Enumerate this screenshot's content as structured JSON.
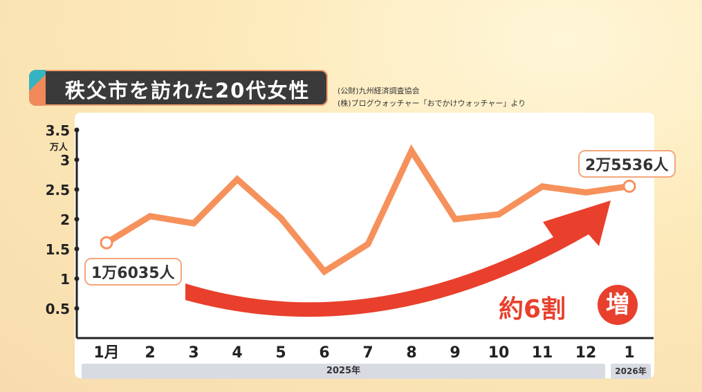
{
  "title": "秩父市を訪れた20代女性",
  "source_lines": [
    "(公財)九州経済調査協会",
    "(株)ブログウォッチャー「おでかけウォッチャー」より"
  ],
  "colors": {
    "line": "#f6915c",
    "arrow": "#e8402c",
    "badge": "#e8402c"
  },
  "chart_data": {
    "type": "line",
    "y_unit_label": "万人",
    "ylim": [
      0,
      3.5
    ],
    "y_ticks": [
      "0.5",
      "1",
      "1.5",
      "2",
      "2.5",
      "3",
      "3.5"
    ],
    "y_tick_values": [
      0.5,
      1,
      1.5,
      2,
      2.5,
      3,
      3.5
    ],
    "categories": [
      "1月",
      "2",
      "3",
      "4",
      "5",
      "6",
      "7",
      "8",
      "9",
      "10",
      "11",
      "12",
      "1"
    ],
    "values": [
      1.6035,
      2.05,
      1.93,
      2.67,
      2.02,
      1.12,
      1.58,
      3.15,
      2.0,
      2.08,
      2.55,
      2.45,
      2.5536
    ],
    "year_labels": [
      "2025年",
      "2026年"
    ],
    "start_label": "1万6035人",
    "end_label": "2万5536人",
    "trend_label": "約6割",
    "trend_badge": "増",
    "grid": false
  }
}
